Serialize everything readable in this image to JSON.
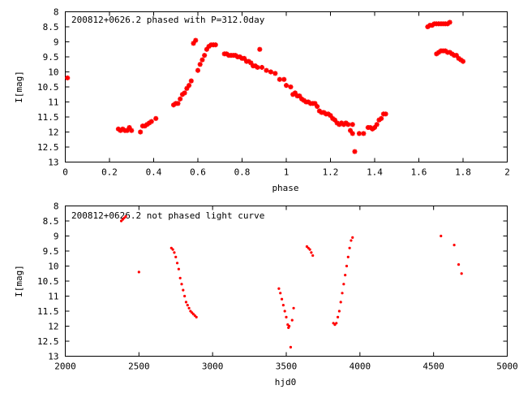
{
  "colors": {
    "points": "#ff0000",
    "axes": "#000000",
    "background": "#ffffff"
  },
  "chart_data": [
    {
      "type": "scatter",
      "title": "200812+0626.2 phased with P=312.0day",
      "xlabel": "phase",
      "ylabel": "I[mag]",
      "xlim": [
        0,
        2
      ],
      "ylim": [
        13,
        8
      ],
      "y_inverted": true,
      "grid": false,
      "marker": "star",
      "xticks": [
        "0",
        "0.2",
        "0.4",
        "0.6",
        "0.8",
        "1",
        "1.2",
        "1.4",
        "1.6",
        "1.8",
        "2"
      ],
      "yticks": [
        "8",
        "8.5",
        "9",
        "9.5",
        "10",
        "10.5",
        "11",
        "11.5",
        "12",
        "12.5",
        "13"
      ],
      "series": [
        {
          "x": [
            0.01,
            0.24,
            0.25,
            0.26,
            0.27,
            0.28,
            0.29,
            0.3,
            0.34,
            0.35,
            0.36,
            0.37,
            0.38,
            0.39,
            0.41,
            0.49,
            0.5,
            0.51,
            0.52,
            0.53,
            0.54,
            0.55,
            0.56,
            0.57,
            0.58,
            0.59,
            0.6,
            0.61,
            0.62,
            0.63,
            0.64,
            0.65,
            0.66,
            0.67,
            0.68,
            0.72,
            0.73,
            0.74,
            0.75,
            0.76,
            0.77,
            0.78,
            0.79,
            0.8,
            0.81,
            0.82,
            0.83,
            0.84,
            0.85,
            0.86,
            0.88,
            0.87,
            0.89,
            0.91,
            0.93,
            0.95,
            0.97,
            0.99,
            1.0,
            1.02,
            1.03,
            1.04,
            1.05,
            1.06,
            1.07,
            1.08,
            1.09,
            1.1,
            1.11,
            1.12,
            1.13,
            1.14,
            1.15,
            1.16,
            1.17,
            1.18,
            1.19,
            1.2,
            1.21,
            1.22,
            1.23,
            1.24,
            1.25,
            1.26,
            1.27,
            1.28,
            1.29,
            1.3,
            1.3,
            1.31,
            1.33,
            1.35,
            1.37,
            1.38,
            1.39,
            1.4,
            1.41,
            1.42,
            1.43,
            1.44,
            1.45,
            1.64,
            1.65,
            1.66,
            1.67,
            1.68,
            1.69,
            1.7,
            1.71,
            1.72,
            1.73,
            1.74,
            1.68,
            1.69,
            1.7,
            1.71,
            1.72,
            1.73,
            1.74,
            1.75,
            1.76,
            1.77,
            1.78,
            1.79,
            1.8
          ],
          "y": [
            10.2,
            11.9,
            11.95,
            11.9,
            11.95,
            11.95,
            11.85,
            11.95,
            12.0,
            11.8,
            11.8,
            11.75,
            11.7,
            11.65,
            11.55,
            11.1,
            11.05,
            11.05,
            10.9,
            10.75,
            10.7,
            10.55,
            10.45,
            10.3,
            9.05,
            8.95,
            9.95,
            9.75,
            9.6,
            9.45,
            9.25,
            9.15,
            9.1,
            9.1,
            9.1,
            9.4,
            9.4,
            9.45,
            9.45,
            9.45,
            9.45,
            9.5,
            9.5,
            9.55,
            9.55,
            9.65,
            9.65,
            9.7,
            9.8,
            9.8,
            9.25,
            9.85,
            9.85,
            9.95,
            10.0,
            10.05,
            10.25,
            10.25,
            10.45,
            10.5,
            10.75,
            10.7,
            10.8,
            10.8,
            10.9,
            10.95,
            11.0,
            11.0,
            11.05,
            11.05,
            11.05,
            11.15,
            11.3,
            11.35,
            11.35,
            11.4,
            11.4,
            11.45,
            11.55,
            11.6,
            11.7,
            11.75,
            11.7,
            11.75,
            11.7,
            11.75,
            11.95,
            11.75,
            12.05,
            12.65,
            12.05,
            12.05,
            11.85,
            11.85,
            11.9,
            11.85,
            11.75,
            11.6,
            11.55,
            11.4,
            11.4,
            8.5,
            8.45,
            8.45,
            8.4,
            8.4,
            8.4,
            8.4,
            8.4,
            8.4,
            8.4,
            8.35,
            9.4,
            9.35,
            9.3,
            9.3,
            9.3,
            9.35,
            9.35,
            9.4,
            9.45,
            9.45,
            9.55,
            9.6,
            9.65
          ]
        }
      ]
    },
    {
      "type": "scatter",
      "title": "200812+0626.2 not phased light curve",
      "xlabel": "hjd0",
      "ylabel": "I[mag]",
      "xlim": [
        2000,
        5000
      ],
      "ylim": [
        13,
        8
      ],
      "y_inverted": true,
      "grid": false,
      "marker": "dot",
      "xticks": [
        "2000",
        "2500",
        "3000",
        "3500",
        "4000",
        "4500",
        "5000"
      ],
      "yticks": [
        "8",
        "8.5",
        "9",
        "9.5",
        "10",
        "10.5",
        "11",
        "11.5",
        "12",
        "12.5",
        "13"
      ],
      "series": [
        {
          "x": [
            2380,
            2390,
            2400,
            2410,
            2500,
            2720,
            2730,
            2740,
            2750,
            2760,
            2770,
            2780,
            2790,
            2800,
            2810,
            2820,
            2830,
            2840,
            2850,
            2860,
            2870,
            2880,
            2890,
            3450,
            3460,
            3470,
            3480,
            3490,
            3500,
            3510,
            3515,
            3520,
            3530,
            3540,
            3550,
            3640,
            3650,
            3660,
            3670,
            3680,
            3820,
            3830,
            3840,
            3850,
            3860,
            3870,
            3880,
            3890,
            3900,
            3910,
            3920,
            3930,
            3940,
            3950,
            4550,
            4640,
            4670,
            4690
          ],
          "y": [
            8.5,
            8.45,
            8.4,
            8.35,
            10.2,
            9.4,
            9.45,
            9.55,
            9.7,
            9.9,
            10.1,
            10.4,
            10.6,
            10.8,
            11.0,
            11.2,
            11.3,
            11.4,
            11.5,
            11.55,
            11.6,
            11.65,
            11.7,
            10.75,
            10.9,
            11.1,
            11.3,
            11.5,
            11.7,
            11.95,
            12.05,
            12.0,
            12.7,
            11.8,
            11.4,
            9.35,
            9.4,
            9.45,
            9.55,
            9.65,
            11.9,
            11.95,
            11.9,
            11.7,
            11.5,
            11.2,
            10.9,
            10.6,
            10.3,
            10.0,
            9.7,
            9.4,
            9.15,
            9.05,
            9.0,
            9.3,
            9.95,
            10.25
          ]
        }
      ]
    }
  ]
}
